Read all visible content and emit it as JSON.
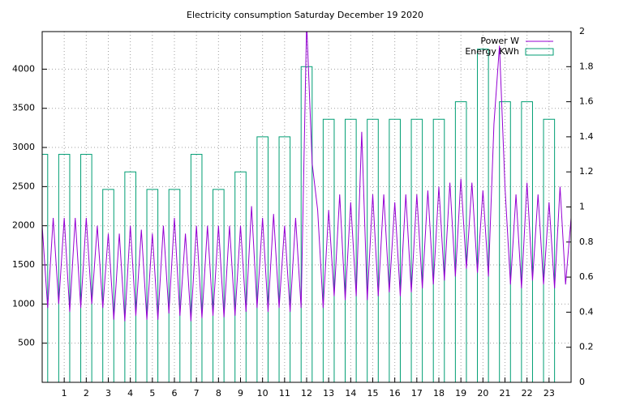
{
  "chart_data": {
    "type": "line-bar",
    "title": "Electricity consumption Saturday December 19 2020",
    "xlim": [
      0,
      24
    ],
    "xticks": [
      1,
      2,
      3,
      4,
      5,
      6,
      7,
      8,
      9,
      10,
      11,
      12,
      13,
      14,
      15,
      16,
      17,
      18,
      19,
      20,
      21,
      22,
      23
    ],
    "ylim": [
      0,
      4480
    ],
    "yticks": [
      500,
      1000,
      1500,
      2000,
      2500,
      3000,
      3500,
      4000
    ],
    "y2lim": [
      0,
      2
    ],
    "y2ticks": [
      0,
      0.2,
      0.4,
      0.6,
      0.8,
      1,
      1.2,
      1.4,
      1.6,
      1.8,
      2
    ],
    "grid": true,
    "legend": "top-right",
    "series": [
      {
        "name": "Power W",
        "color": "#9400d3",
        "kind": "line",
        "x": [
          0,
          0.25,
          0.5,
          0.75,
          1,
          1.25,
          1.5,
          1.75,
          2,
          2.25,
          2.5,
          2.75,
          3,
          3.25,
          3.5,
          3.75,
          4,
          4.25,
          4.5,
          4.75,
          5,
          5.25,
          5.5,
          5.75,
          6,
          6.25,
          6.5,
          6.75,
          7,
          7.25,
          7.5,
          7.75,
          8,
          8.25,
          8.5,
          8.75,
          9,
          9.25,
          9.5,
          9.75,
          10,
          10.25,
          10.5,
          10.75,
          11,
          11.25,
          11.5,
          11.75,
          12,
          12.25,
          12.5,
          12.75,
          13,
          13.25,
          13.5,
          13.75,
          14,
          14.25,
          14.5,
          14.75,
          15,
          15.25,
          15.5,
          15.75,
          16,
          16.25,
          16.5,
          16.75,
          17,
          17.25,
          17.5,
          17.75,
          18,
          18.25,
          18.5,
          18.75,
          19,
          19.25,
          19.5,
          19.75,
          20,
          20.25,
          20.5,
          20.75,
          21,
          21.25,
          21.5,
          21.75,
          22,
          22.25,
          22.5,
          22.75,
          23,
          23.25,
          23.5,
          23.75,
          24
        ],
        "values": [
          2000,
          950,
          2100,
          1000,
          2100,
          900,
          2100,
          950,
          2100,
          1000,
          2000,
          950,
          1900,
          800,
          1900,
          780,
          2000,
          850,
          1950,
          800,
          1900,
          800,
          2000,
          880,
          2100,
          850,
          1900,
          780,
          2000,
          820,
          2000,
          850,
          2000,
          830,
          2000,
          850,
          2000,
          900,
          2250,
          950,
          2100,
          900,
          2150,
          950,
          2000,
          900,
          2100,
          950,
          4600,
          2800,
          2200,
          950,
          2200,
          1100,
          2400,
          1050,
          2300,
          1100,
          3200,
          1050,
          2400,
          1100,
          2400,
          1150,
          2300,
          1100,
          2400,
          1150,
          2400,
          1200,
          2450,
          1250,
          2500,
          1300,
          2550,
          1350,
          2600,
          1450,
          2550,
          1400,
          2450,
          1350,
          3300,
          4300,
          2500,
          1250,
          2400,
          1200,
          2550,
          1300,
          2400,
          1250,
          2300,
          1200,
          2500,
          1250,
          2100
        ]
      },
      {
        "name": "Energy KWh",
        "color": "#009e73",
        "kind": "boxes",
        "axis": "y2",
        "x": [
          0,
          1,
          2,
          3,
          4,
          5,
          6,
          7,
          8,
          9,
          10,
          11,
          12,
          13,
          14,
          15,
          16,
          17,
          18,
          19,
          20,
          21,
          22,
          23
        ],
        "values": [
          1.3,
          1.3,
          1.3,
          1.1,
          1.2,
          1.1,
          1.1,
          1.3,
          1.1,
          1.2,
          1.4,
          1.4,
          1.8,
          1.5,
          1.5,
          1.5,
          1.5,
          1.5,
          1.5,
          1.6,
          1.9,
          1.6,
          1.6,
          1.5
        ]
      }
    ]
  }
}
